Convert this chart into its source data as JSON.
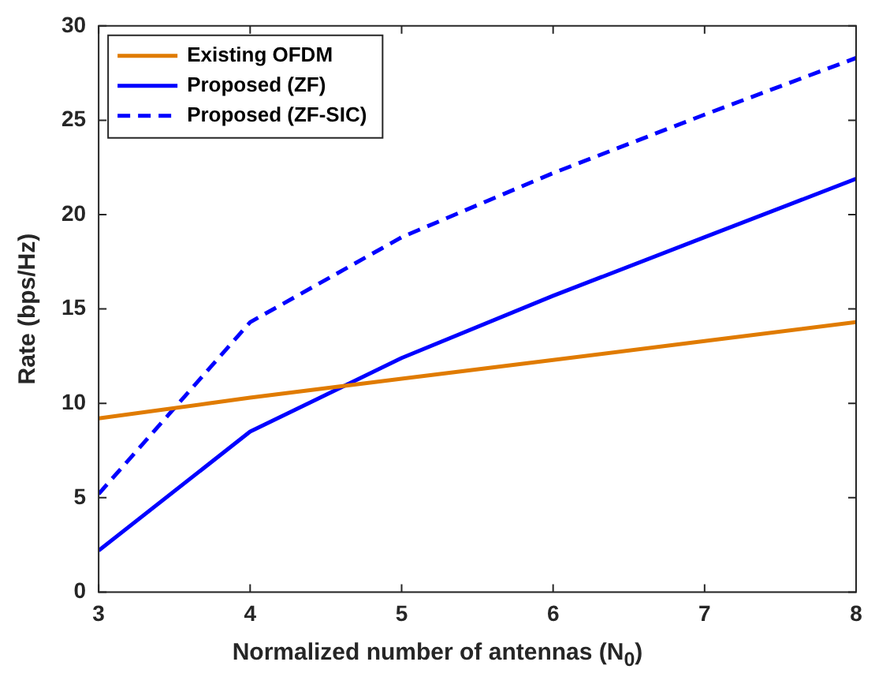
{
  "chart_data": {
    "type": "line",
    "xlabel": "Normalized number of antennas (N$_{0}$)",
    "ylabel": "Rate (bps/Hz)",
    "x": [
      3,
      4,
      5,
      6,
      7,
      8
    ],
    "series": [
      {
        "name": "Existing OFDM",
        "color": "#e07b00",
        "values": [
          9.2,
          10.3,
          11.3,
          12.3,
          13.3,
          14.3
        ],
        "line_style": "solid"
      },
      {
        "name": "Proposed (ZF)",
        "color": "#0000ff",
        "values": [
          2.2,
          8.5,
          12.4,
          15.7,
          18.8,
          21.9
        ],
        "line_style": "solid"
      },
      {
        "name": "Proposed (ZF-SIC)",
        "color": "#0000ff",
        "values": [
          5.2,
          14.3,
          18.8,
          22.2,
          25.3,
          28.3
        ],
        "line_style": "dashed"
      }
    ],
    "xlim": [
      3,
      8
    ],
    "xticks": [
      3,
      4,
      5,
      6,
      7,
      8
    ],
    "ylim": [
      0,
      30
    ],
    "yticks": [
      0,
      5,
      10,
      15,
      20,
      25,
      30
    ],
    "grid": false,
    "legend": "top left",
    "marker": "none"
  }
}
